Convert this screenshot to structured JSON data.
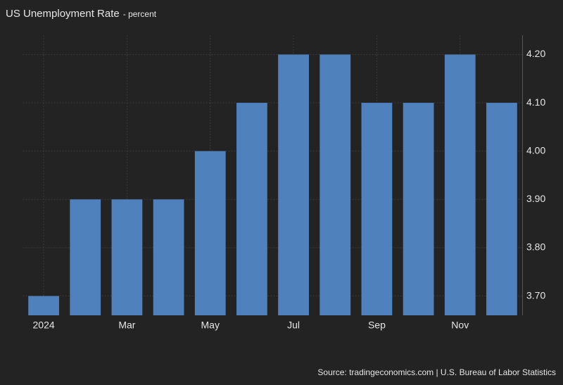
{
  "chart_data": {
    "type": "bar",
    "title": "US Unemployment Rate",
    "subtitle": "- percent",
    "source": "Source: tradingeconomics.com | U.S. Bureau of Labor Statistics",
    "categories": [
      "2024",
      null,
      "Mar",
      null,
      "May",
      null,
      "Jul",
      null,
      "Sep",
      null,
      "Nov",
      null
    ],
    "values": [
      3.7,
      3.9,
      3.9,
      3.9,
      4.0,
      4.1,
      4.2,
      4.2,
      4.1,
      4.1,
      4.2,
      4.1
    ],
    "color": "#4f81bd",
    "ylim": [
      3.66,
      4.24
    ],
    "yticks": [
      {
        "value": 3.7,
        "label": "3.70"
      },
      {
        "value": 3.8,
        "label": "3.80"
      },
      {
        "value": 3.9,
        "label": "3.90"
      },
      {
        "value": 4.0,
        "label": "4.00"
      },
      {
        "value": 4.1,
        "label": "4.10"
      },
      {
        "value": 4.2,
        "label": "4.20"
      }
    ],
    "grid": true
  }
}
